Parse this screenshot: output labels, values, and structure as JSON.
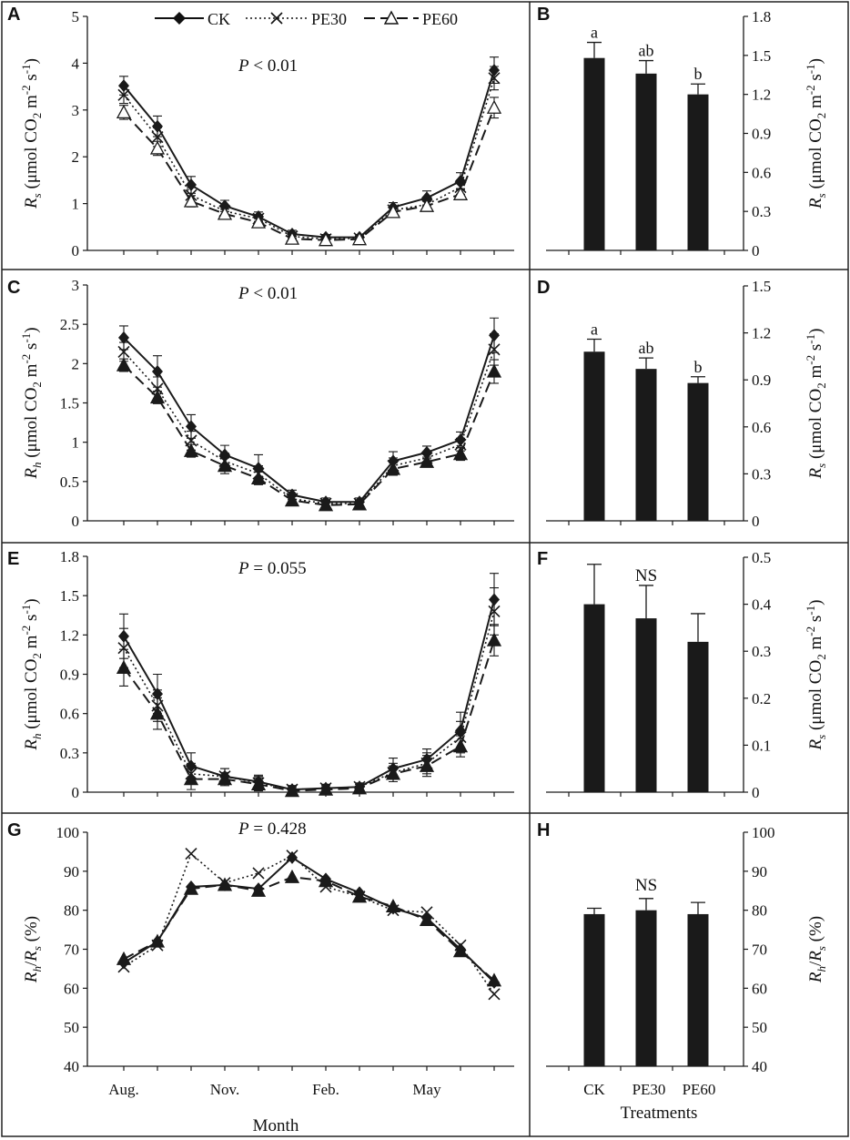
{
  "legend": {
    "ck": "CK",
    "pe30": "PE30",
    "pe60": "PE60"
  },
  "colors": {
    "bar": "#1a1a1a",
    "line": "#1a1a1a",
    "background": "#ffffff"
  },
  "x_axis_month_label": "Month",
  "treatments_label": "Treatments",
  "chart_data": [
    {
      "id": "A",
      "type": "line",
      "panel_label": "A",
      "stat_label": "P < 0.01",
      "ylabel": "Rs (μmol CO2 m-2 s-1)",
      "ylim": [
        0,
        5
      ],
      "yticks": [
        0,
        1,
        2,
        3,
        4,
        5
      ],
      "x_ticks": [
        "Aug.",
        "Nov.",
        "Feb.",
        "May"
      ],
      "x": [
        0,
        1,
        2,
        3,
        4,
        5,
        6,
        7,
        8,
        9,
        10,
        11
      ],
      "series": [
        {
          "name": "CK",
          "values": [
            3.52,
            2.65,
            1.4,
            0.95,
            0.72,
            0.35,
            0.28,
            0.28,
            0.92,
            1.12,
            1.48,
            3.85
          ],
          "errors": [
            0.2,
            0.22,
            0.18,
            0.12,
            0.1,
            0.08,
            0.06,
            0.06,
            0.1,
            0.15,
            0.18,
            0.28
          ]
        },
        {
          "name": "PE30",
          "values": [
            3.32,
            2.42,
            1.18,
            0.84,
            0.68,
            0.3,
            0.24,
            0.26,
            0.86,
            0.98,
            1.35,
            3.68
          ],
          "errors": [
            0.18,
            0.2,
            0.16,
            0.1,
            0.08,
            0.06,
            0.05,
            0.05,
            0.08,
            0.12,
            0.15,
            0.25
          ]
        },
        {
          "name": "PE60",
          "values": [
            2.95,
            2.18,
            1.05,
            0.78,
            0.6,
            0.25,
            0.22,
            0.24,
            0.82,
            0.95,
            1.2,
            3.05
          ],
          "errors": [
            0.15,
            0.15,
            0.12,
            0.1,
            0.08,
            0.05,
            0.05,
            0.05,
            0.08,
            0.1,
            0.12,
            0.22
          ]
        }
      ]
    },
    {
      "id": "B",
      "type": "bar",
      "panel_label": "B",
      "ylabel": "Rs (μmol CO2 m-2 s-1)",
      "ylim": [
        0,
        1.8
      ],
      "yticks": [
        "0",
        "0.3",
        "0.6",
        "0.9",
        "1.2",
        "1.5",
        "1.8"
      ],
      "categories": [
        "CK",
        "PE30",
        "PE60"
      ],
      "values": [
        1.48,
        1.36,
        1.2
      ],
      "errors": [
        0.12,
        0.1,
        0.08
      ],
      "letters": [
        "a",
        "ab",
        "b"
      ],
      "show_category_labels": false
    },
    {
      "id": "C",
      "type": "line",
      "panel_label": "C",
      "stat_label": "P < 0.01",
      "ylabel": "Rh (μmol CO2 m-2 s-1)",
      "ylim": [
        0,
        3
      ],
      "yticks": [
        "0",
        "0.5",
        "1",
        "1.5",
        "2",
        "2.5",
        "3"
      ],
      "x_ticks": [
        "Aug.",
        "Nov.",
        "Feb.",
        "May"
      ],
      "x": [
        0,
        1,
        2,
        3,
        4,
        5,
        6,
        7,
        8,
        9,
        10,
        11
      ],
      "series": [
        {
          "name": "CK",
          "values": [
            2.33,
            1.9,
            1.2,
            0.84,
            0.67,
            0.33,
            0.24,
            0.24,
            0.76,
            0.87,
            1.03,
            2.36
          ],
          "errors": [
            0.15,
            0.2,
            0.15,
            0.12,
            0.17,
            0.06,
            0.05,
            0.05,
            0.12,
            0.08,
            0.1,
            0.22
          ]
        },
        {
          "name": "PE30",
          "values": [
            2.15,
            1.68,
            1.02,
            0.76,
            0.6,
            0.28,
            0.22,
            0.22,
            0.7,
            0.8,
            0.97,
            2.18
          ],
          "errors": [
            0.12,
            0.15,
            0.12,
            0.1,
            0.1,
            0.05,
            0.04,
            0.04,
            0.1,
            0.08,
            0.08,
            0.2
          ]
        },
        {
          "name": "PE60",
          "values": [
            1.98,
            1.57,
            0.89,
            0.7,
            0.54,
            0.26,
            0.2,
            0.21,
            0.66,
            0.75,
            0.85,
            1.9
          ],
          "errors": [
            0.08,
            0.08,
            0.08,
            0.1,
            0.08,
            0.05,
            0.04,
            0.04,
            0.08,
            0.06,
            0.08,
            0.15
          ]
        }
      ]
    },
    {
      "id": "D",
      "type": "bar",
      "panel_label": "D",
      "ylabel": "Rs (μmol CO2 m-2 s-1)",
      "ylim": [
        0,
        1.5
      ],
      "yticks": [
        "0",
        "0.3",
        "0.6",
        "0.9",
        "1.2",
        "1.5"
      ],
      "categories": [
        "CK",
        "PE30",
        "PE60"
      ],
      "values": [
        1.08,
        0.97,
        0.88
      ],
      "errors": [
        0.08,
        0.07,
        0.04
      ],
      "letters": [
        "a",
        "ab",
        "b"
      ],
      "show_category_labels": false
    },
    {
      "id": "E",
      "type": "line",
      "panel_label": "E",
      "stat_label": "P = 0.055",
      "ylabel": "Rh (μmol CO2 m-2 s-1)",
      "ylim": [
        0,
        1.8
      ],
      "yticks": [
        "0",
        "0.3",
        "0.6",
        "0.9",
        "1.2",
        "1.5",
        "1.8"
      ],
      "x_ticks": [
        "Aug.",
        "Nov.",
        "Feb.",
        "May"
      ],
      "x": [
        0,
        1,
        2,
        3,
        4,
        5,
        6,
        7,
        8,
        9,
        10,
        11
      ],
      "series": [
        {
          "name": "CK",
          "values": [
            1.19,
            0.75,
            0.2,
            0.12,
            0.08,
            0.02,
            0.03,
            0.04,
            0.18,
            0.25,
            0.47,
            1.47
          ],
          "errors": [
            0.17,
            0.15,
            0.1,
            0.06,
            0.05,
            0.03,
            0.03,
            0.03,
            0.08,
            0.08,
            0.14,
            0.2
          ]
        },
        {
          "name": "PE30",
          "values": [
            1.1,
            0.66,
            0.14,
            0.12,
            0.07,
            0.02,
            0.03,
            0.04,
            0.15,
            0.22,
            0.42,
            1.38
          ],
          "errors": [
            0.15,
            0.12,
            0.08,
            0.06,
            0.05,
            0.03,
            0.03,
            0.03,
            0.07,
            0.08,
            0.12,
            0.18
          ]
        },
        {
          "name": "PE60",
          "values": [
            0.95,
            0.6,
            0.1,
            0.1,
            0.06,
            0.01,
            0.02,
            0.03,
            0.14,
            0.2,
            0.35,
            1.16
          ],
          "errors": [
            0.14,
            0.12,
            0.08,
            0.05,
            0.05,
            0.03,
            0.03,
            0.03,
            0.06,
            0.08,
            0.08,
            0.12
          ]
        }
      ]
    },
    {
      "id": "F",
      "type": "bar",
      "panel_label": "F",
      "stat_label": "NS",
      "ylabel": "Rs (μmol CO2 m-2 s-1)",
      "ylim": [
        0,
        0.5
      ],
      "yticks": [
        "0",
        "0.1",
        "0.2",
        "0.3",
        "0.4",
        "0.5"
      ],
      "categories": [
        "CK",
        "PE30",
        "PE60"
      ],
      "values": [
        0.4,
        0.37,
        0.32
      ],
      "errors": [
        0.085,
        0.07,
        0.06
      ],
      "letters": [
        "",
        "",
        ""
      ],
      "show_category_labels": false
    },
    {
      "id": "G",
      "type": "line",
      "panel_label": "G",
      "stat_label": "P = 0.428",
      "ylabel": "Rh/Rs (%)",
      "ylim": [
        40,
        100
      ],
      "yticks": [
        "40",
        "50",
        "60",
        "70",
        "80",
        "90",
        "100"
      ],
      "x_ticks": [
        "Aug.",
        "Nov.",
        "Feb.",
        "May"
      ],
      "x": [
        0,
        1,
        2,
        3,
        4,
        5,
        6,
        7,
        8,
        9,
        10,
        11
      ],
      "series": [
        {
          "name": "CK",
          "values": [
            66.5,
            72,
            86,
            86.5,
            85.5,
            93.5,
            88,
            84.5,
            80.5,
            78,
            70,
            61.5
          ],
          "errors": []
        },
        {
          "name": "PE30",
          "values": [
            65.5,
            71,
            94.5,
            87,
            89.5,
            94,
            86,
            83.5,
            80,
            79.5,
            71,
            58.5
          ],
          "errors": []
        },
        {
          "name": "PE60",
          "values": [
            67.5,
            72,
            85.5,
            86.5,
            85,
            88.5,
            87.5,
            83.5,
            81,
            77.5,
            69.5,
            62
          ],
          "errors": []
        }
      ]
    },
    {
      "id": "H",
      "type": "bar",
      "panel_label": "H",
      "stat_label": "NS",
      "ylabel": "Rh/Rs (%)",
      "ylim": [
        40,
        100
      ],
      "yticks": [
        "40",
        "50",
        "60",
        "70",
        "80",
        "90",
        "100"
      ],
      "categories": [
        "CK",
        "PE30",
        "PE60"
      ],
      "values": [
        79,
        80,
        79
      ],
      "errors": [
        1.5,
        3,
        3
      ],
      "letters": [
        "",
        "",
        ""
      ],
      "show_category_labels": true
    }
  ]
}
